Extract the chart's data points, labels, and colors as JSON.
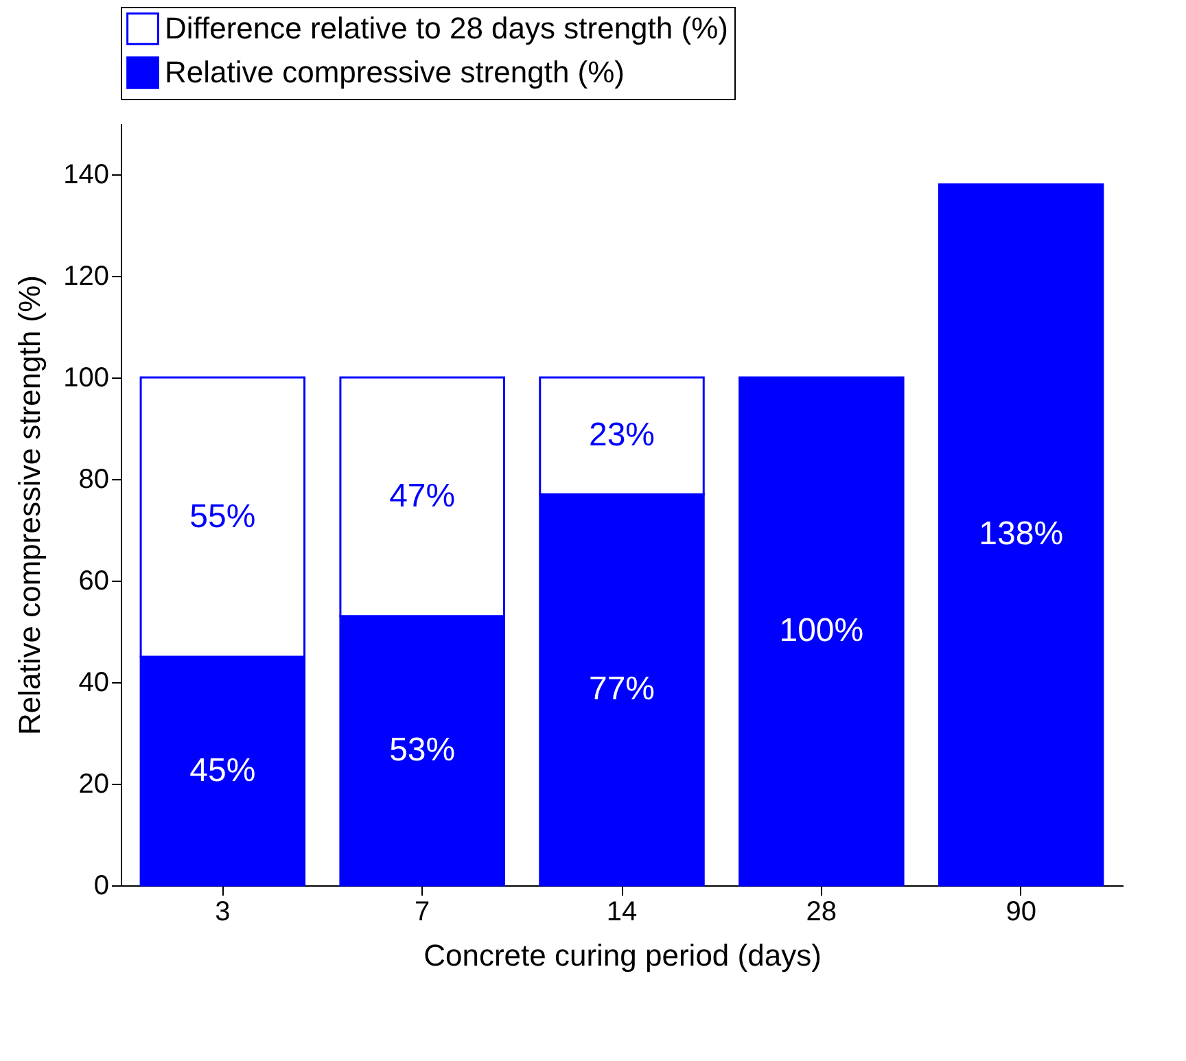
{
  "chart_data": {
    "type": "bar",
    "stacked": true,
    "xlabel": "Concrete curing period (days)",
    "ylabel": "Relative compressive strength (%)",
    "categories": [
      "3",
      "7",
      "14",
      "28",
      "90"
    ],
    "series": [
      {
        "name": "Relative compressive strength (%)",
        "color": "#0000ff",
        "values": [
          45,
          53,
          77,
          100,
          138
        ],
        "value_labels": [
          "45%",
          "53%",
          "77%",
          "100%",
          "138%"
        ]
      },
      {
        "name": "Difference relative to 28 days strength (%)",
        "color": "#ffffff",
        "values": [
          55,
          47,
          23,
          null,
          null
        ],
        "value_labels": [
          "55%",
          "47%",
          "23%",
          null,
          null
        ]
      }
    ],
    "ylim": [
      0,
      150
    ],
    "yticks": [
      0,
      20,
      40,
      60,
      80,
      100,
      120,
      140
    ],
    "grid": false,
    "legend": "top"
  }
}
